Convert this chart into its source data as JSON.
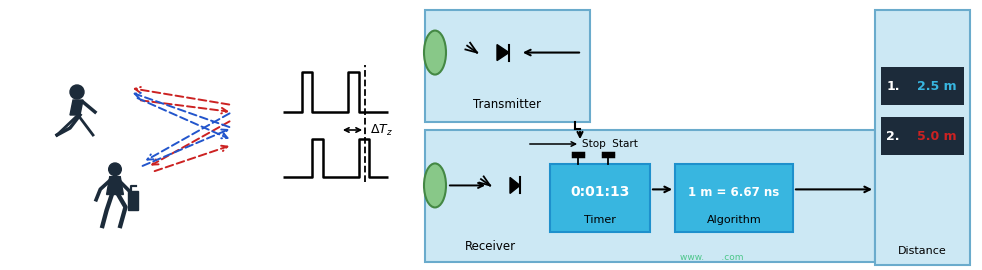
{
  "bg_color": "#ffffff",
  "light_blue": "#cce8f4",
  "mid_blue": "#38b6e0",
  "dark_box_bg": "#1c2b3a",
  "green_ellipse": "#88c888",
  "green_ellipse_edge": "#448844",
  "red_arrow": "#cc2222",
  "blue_arrow": "#2255cc",
  "box_edge": "#6aabcc",
  "transmitter_label": "Transmitter",
  "receiver_label": "Receiver",
  "timer_label": "Timer",
  "timer_value": "0:01:13",
  "algo_label": "Algorithm",
  "algo_value": "1 m = 6.67 ns",
  "stop_start_label": "Stop  Start",
  "dist1_label": "1.",
  "dist1_val": "2.5 m",
  "dist2_label": "2.",
  "dist2_val": "5.0 m",
  "distance_label": "Distance",
  "watermark": "www.      .com",
  "fig_width": 9.82,
  "fig_height": 2.7,
  "dpi": 100
}
